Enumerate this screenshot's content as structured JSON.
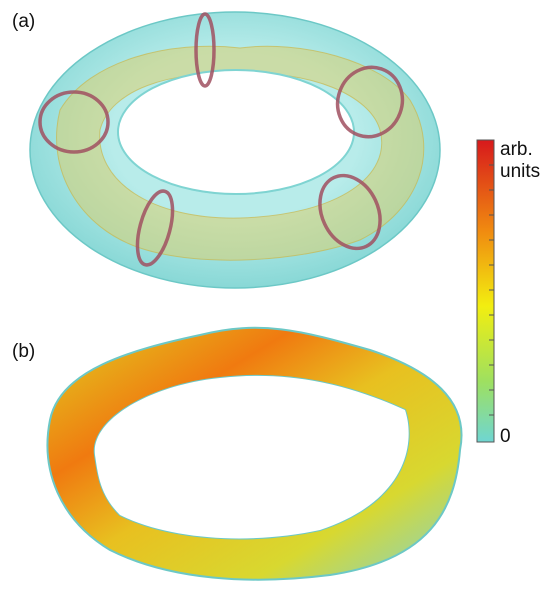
{
  "panels": [
    {
      "label": "(a)"
    },
    {
      "label": "(b)"
    }
  ],
  "colorbar": {
    "title_lines": [
      "arb.",
      "units"
    ],
    "bottom_label": "0"
  }
}
